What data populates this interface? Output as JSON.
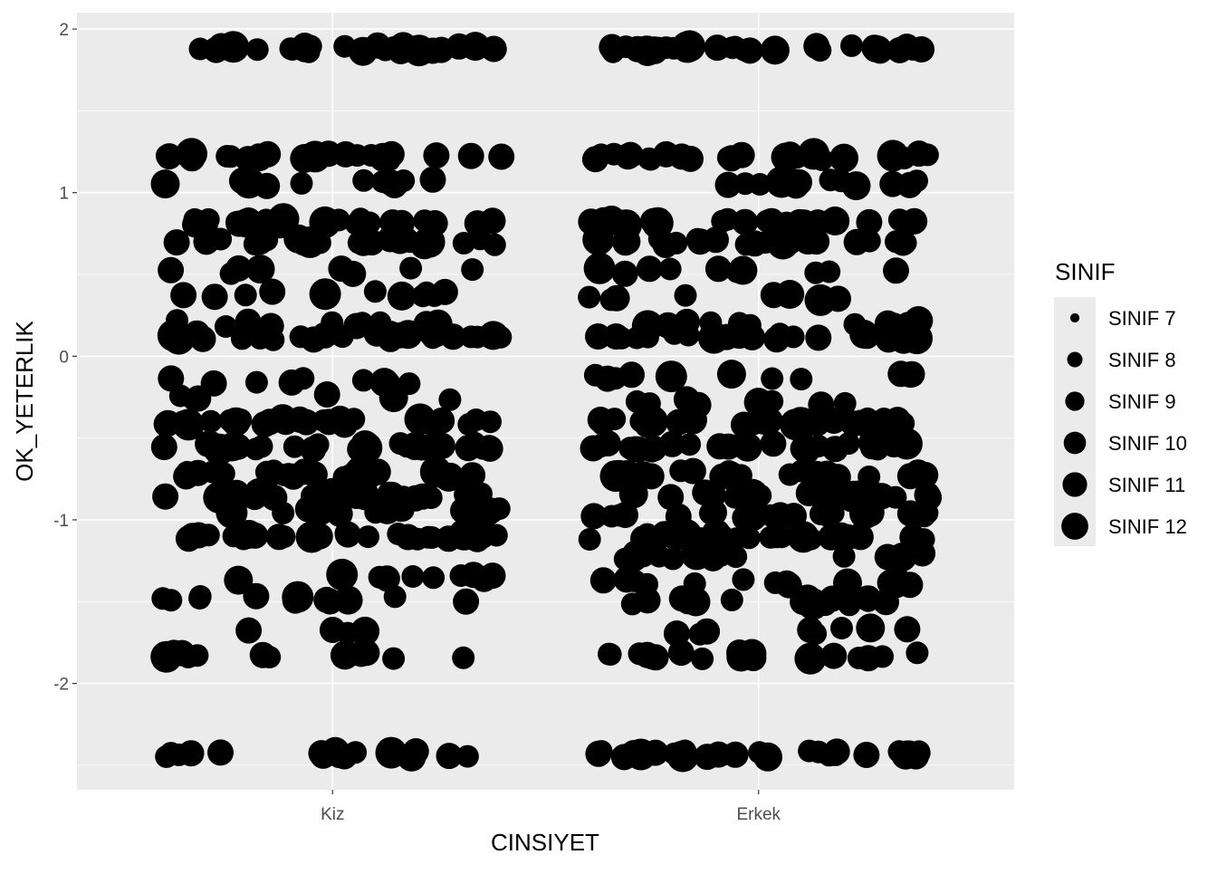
{
  "chart_data": {
    "type": "scatter",
    "title": "",
    "xlabel": "CINSIYET",
    "ylabel": "OK_YETERLIK",
    "categories": [
      "Kiz",
      "Erkek"
    ],
    "ylim": [
      -2.65,
      2.1
    ],
    "yticks": [
      2,
      1,
      0,
      -1,
      -2
    ],
    "ytick_labels": [
      "2",
      "1",
      "0",
      "-1",
      "-2"
    ],
    "grid": true,
    "jitter": true,
    "point_color": "#000000",
    "panel_background": "#ebebeb",
    "legend": {
      "title": "SINIF",
      "placement": "right",
      "entries": [
        "SINIF 7",
        "SINIF 8",
        "SINIF 9",
        "SINIF 10",
        "SINIF 11",
        "SINIF 12"
      ],
      "levels": [
        7,
        8,
        9,
        10,
        11,
        12
      ]
    },
    "groups": [
      {
        "category": "Kiz",
        "levels": [
          {
            "y": 1.88,
            "sinif": [
              9,
              10,
              9,
              10,
              11,
              9,
              10,
              9,
              12,
              10,
              9,
              10,
              9,
              11,
              10,
              9,
              10,
              9,
              10,
              12,
              9,
              10,
              9,
              10,
              11,
              9,
              10,
              9,
              10,
              9
            ]
          },
          {
            "y": 1.22,
            "sinif": [
              10,
              9,
              10,
              11,
              9,
              10,
              9,
              10,
              12,
              9,
              10,
              9,
              10,
              9,
              11,
              10,
              9,
              10,
              9,
              10,
              9,
              12,
              10,
              9,
              10
            ]
          },
          {
            "y": 1.06,
            "sinif": [
              10,
              9,
              11,
              9,
              10,
              9,
              10,
              12,
              9,
              10,
              9,
              10
            ]
          },
          {
            "y": 0.82,
            "sinif": [
              9,
              10,
              9,
              10,
              11,
              9,
              10,
              9,
              10,
              12,
              9,
              10,
              9,
              10,
              11,
              9,
              10,
              9,
              10,
              9,
              12,
              10,
              9,
              10,
              9
            ]
          },
          {
            "y": 0.7,
            "sinif": [
              10,
              9,
              10,
              9,
              11,
              10,
              9,
              10,
              9,
              12,
              10,
              9,
              10,
              9,
              10,
              11,
              9,
              10,
              9,
              10,
              9,
              12,
              10,
              9,
              10
            ]
          },
          {
            "y": 0.52,
            "sinif": [
              10,
              9,
              10,
              11,
              9,
              10,
              9,
              10
            ]
          },
          {
            "y": 0.38,
            "sinif": [
              9,
              10,
              9,
              11,
              10,
              9,
              10,
              9,
              12,
              10,
              9
            ]
          },
          {
            "y": 0.2,
            "sinif": [
              9,
              10,
              9,
              10,
              11,
              9,
              10,
              9,
              10,
              9
            ]
          },
          {
            "y": 0.12,
            "sinif": [
              10,
              9,
              10,
              9,
              11,
              10,
              9,
              10,
              9,
              12,
              10,
              9,
              10,
              9,
              10,
              11,
              9,
              10,
              9,
              10,
              9,
              12,
              10,
              9,
              10,
              9,
              10,
              9
            ]
          },
          {
            "y": -0.15,
            "sinif": [
              10,
              9,
              10,
              9,
              11,
              10,
              9,
              10,
              9
            ]
          },
          {
            "y": -0.25,
            "sinif": [
              9,
              10,
              9,
              10,
              9,
              11
            ]
          },
          {
            "y": -0.4,
            "sinif": [
              10,
              9,
              10,
              11,
              9,
              10,
              9,
              10,
              12,
              9,
              10,
              9,
              10,
              9,
              11,
              10,
              9,
              10,
              9,
              10,
              9,
              12,
              10,
              9,
              10,
              9,
              10,
              9
            ]
          },
          {
            "y": -0.55,
            "sinif": [
              9,
              10,
              9,
              10,
              11,
              9,
              10,
              9,
              10,
              12,
              9,
              10,
              9,
              10,
              11,
              9,
              10,
              9,
              10,
              9,
              12,
              10,
              9,
              10,
              9,
              10,
              9,
              10
            ]
          },
          {
            "y": -0.72,
            "sinif": [
              10,
              9,
              10,
              9,
              11,
              10,
              9,
              10,
              9,
              12,
              10,
              9,
              10,
              9,
              10,
              11,
              9,
              10,
              9,
              10,
              9,
              12,
              10,
              9,
              10
            ]
          },
          {
            "y": -0.85,
            "sinif": [
              9,
              10,
              9,
              10,
              11,
              9,
              10,
              9,
              10,
              12,
              9,
              10,
              9,
              10,
              11,
              9,
              10,
              9,
              10,
              9,
              12,
              10,
              9,
              10,
              9
            ]
          },
          {
            "y": -0.95,
            "sinif": [
              10,
              9,
              10,
              9,
              11,
              10,
              9,
              10,
              9,
              12,
              10,
              9,
              10,
              9,
              10
            ]
          },
          {
            "y": -1.1,
            "sinif": [
              9,
              10,
              9,
              10,
              11,
              9,
              10,
              9,
              10,
              12,
              9,
              10,
              9,
              10,
              11,
              9,
              10,
              9,
              10,
              9,
              12,
              10,
              9,
              10,
              9,
              10,
              9,
              10
            ]
          },
          {
            "y": -1.35,
            "sinif": [
              10,
              9,
              10,
              9,
              11,
              10,
              9,
              10,
              9,
              12
            ]
          },
          {
            "y": -1.48,
            "sinif": [
              9,
              10,
              9,
              10,
              11,
              9,
              10,
              9,
              10,
              12,
              9,
              10
            ]
          },
          {
            "y": -1.68,
            "sinif": [
              10,
              9,
              10,
              11
            ]
          },
          {
            "y": -1.83,
            "sinif": [
              9,
              10,
              9,
              10,
              11,
              9,
              10,
              9,
              10,
              12,
              9,
              10
            ]
          },
          {
            "y": -2.43,
            "sinif": [
              10,
              9,
              10,
              9,
              11,
              10,
              9,
              10,
              9,
              12,
              10,
              9,
              10,
              9,
              10,
              11,
              9,
              10
            ]
          }
        ]
      },
      {
        "category": "Erkek",
        "levels": [
          {
            "y": 1.88,
            "sinif": [
              9,
              10,
              9,
              10,
              11,
              9,
              10,
              9,
              12,
              10,
              9,
              10,
              9,
              11,
              10,
              9,
              10,
              9,
              10,
              12,
              9,
              10,
              9,
              10,
              11,
              9,
              10,
              9,
              10,
              9,
              10,
              9
            ]
          },
          {
            "y": 1.22,
            "sinif": [
              10,
              9,
              10,
              11,
              9,
              10,
              9,
              10,
              12,
              9,
              10,
              9,
              10,
              9,
              11,
              10,
              9,
              10,
              9,
              10,
              9,
              12,
              10,
              9,
              10
            ]
          },
          {
            "y": 1.06,
            "sinif": [
              10,
              9,
              11,
              9,
              10,
              9,
              10,
              12,
              9,
              10,
              9,
              10,
              9,
              10
            ]
          },
          {
            "y": 0.82,
            "sinif": [
              9,
              10,
              9,
              10,
              11,
              9,
              10,
              9,
              10,
              12,
              9,
              10,
              9,
              10,
              11,
              9,
              10,
              9,
              10,
              9,
              12,
              10,
              9,
              10,
              9
            ]
          },
          {
            "y": 0.7,
            "sinif": [
              10,
              9,
              10,
              9,
              11,
              10,
              9,
              10,
              9,
              12,
              10,
              9,
              10,
              9,
              10,
              11,
              9,
              10,
              9,
              10,
              9,
              12,
              10,
              9,
              10
            ]
          },
          {
            "y": 0.52,
            "sinif": [
              10,
              9,
              10,
              11,
              9,
              10,
              9,
              10,
              12,
              9
            ]
          },
          {
            "y": 0.36,
            "sinif": [
              9,
              10,
              9,
              11,
              10,
              9,
              10,
              9,
              12
            ]
          },
          {
            "y": 0.2,
            "sinif": [
              9,
              10,
              9,
              10,
              11,
              9,
              10,
              9,
              10,
              9,
              12
            ]
          },
          {
            "y": 0.12,
            "sinif": [
              10,
              9,
              10,
              9,
              11,
              10,
              9,
              10,
              9,
              12,
              10,
              9,
              10,
              9,
              10,
              11,
              9,
              10,
              9,
              10,
              9,
              12,
              10,
              9,
              10,
              9,
              10,
              9
            ]
          },
          {
            "y": -0.12,
            "sinif": [
              10,
              9,
              10,
              9,
              11,
              10,
              9,
              10,
              9,
              12,
              10
            ]
          },
          {
            "y": -0.28,
            "sinif": [
              9,
              10,
              9,
              10,
              9,
              11,
              10,
              9
            ]
          },
          {
            "y": -0.4,
            "sinif": [
              10,
              9,
              10,
              11,
              9,
              10,
              9,
              10,
              12,
              9,
              10,
              9,
              10,
              9,
              11,
              10,
              9,
              10,
              9,
              10,
              9,
              12,
              10,
              9,
              10,
              9,
              10,
              9,
              10,
              9
            ]
          },
          {
            "y": -0.55,
            "sinif": [
              9,
              10,
              9,
              10,
              11,
              9,
              10,
              9,
              10,
              12,
              9,
              10,
              9,
              10,
              11,
              9,
              10,
              9,
              10,
              9,
              12,
              10,
              9,
              10,
              9,
              10,
              9,
              10,
              9,
              10
            ]
          },
          {
            "y": -0.72,
            "sinif": [
              10,
              9,
              10,
              9,
              11,
              10,
              9,
              10,
              9,
              12,
              10,
              9,
              10,
              9,
              10,
              11,
              9,
              10,
              9,
              10,
              9,
              12,
              10,
              9,
              10,
              9,
              10,
              9
            ]
          },
          {
            "y": -0.85,
            "sinif": [
              9,
              10,
              9,
              10,
              11,
              9,
              10,
              9,
              10,
              12,
              9,
              10,
              9,
              10,
              11,
              9,
              10,
              9,
              10,
              9,
              12,
              10,
              9,
              10,
              9,
              10,
              9,
              10
            ]
          },
          {
            "y": -0.97,
            "sinif": [
              10,
              9,
              10,
              9,
              11,
              10,
              9,
              10,
              9,
              12,
              10,
              9,
              10,
              9,
              10,
              11,
              9,
              10,
              9,
              10
            ]
          },
          {
            "y": -1.1,
            "sinif": [
              9,
              10,
              9,
              10,
              11,
              9,
              10,
              9,
              10,
              12,
              9,
              10,
              9,
              10,
              11,
              9,
              10,
              9,
              10,
              9,
              12,
              10,
              9,
              10,
              9,
              10,
              9,
              10,
              9,
              10
            ]
          },
          {
            "y": -1.22,
            "sinif": [
              10,
              9,
              10,
              9,
              11,
              10,
              9,
              10,
              9,
              12,
              10,
              9,
              10,
              9,
              10
            ]
          },
          {
            "y": -1.38,
            "sinif": [
              10,
              9,
              10,
              9,
              11,
              10,
              9,
              10,
              9,
              12,
              10,
              9,
              10,
              9
            ]
          },
          {
            "y": -1.5,
            "sinif": [
              9,
              10,
              9,
              10,
              11,
              9,
              10,
              9,
              10,
              12,
              9,
              10,
              9,
              10,
              11,
              9
            ]
          },
          {
            "y": -1.68,
            "sinif": [
              10,
              9,
              10,
              11,
              9,
              10,
              9,
              10
            ]
          },
          {
            "y": -1.83,
            "sinif": [
              9,
              10,
              9,
              10,
              11,
              9,
              10,
              9,
              10,
              12,
              9,
              10,
              9,
              10,
              11,
              9,
              10,
              9
            ]
          },
          {
            "y": -2.43,
            "sinif": [
              10,
              9,
              10,
              9,
              11,
              10,
              9,
              10,
              9,
              12,
              10,
              9,
              10,
              9,
              10,
              11,
              9,
              10,
              9,
              10,
              9,
              12,
              10,
              9,
              10,
              9,
              10,
              9,
              10,
              9
            ]
          }
        ]
      }
    ]
  }
}
